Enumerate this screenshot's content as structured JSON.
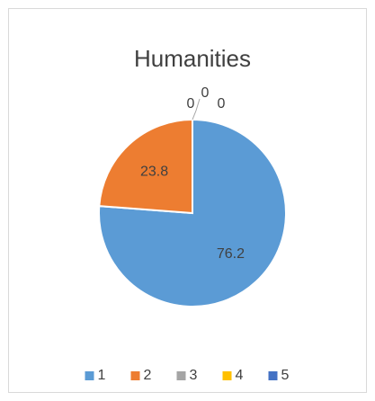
{
  "chart_data": {
    "type": "pie",
    "title": "Humanities",
    "categories": [
      "1",
      "2",
      "3",
      "4",
      "5"
    ],
    "values": [
      76.2,
      23.8,
      0,
      0,
      0
    ],
    "colors": [
      "#5b9bd5",
      "#ed7d31",
      "#a5a5a5",
      "#ffc000",
      "#4472c4"
    ],
    "legend": "bottom"
  }
}
